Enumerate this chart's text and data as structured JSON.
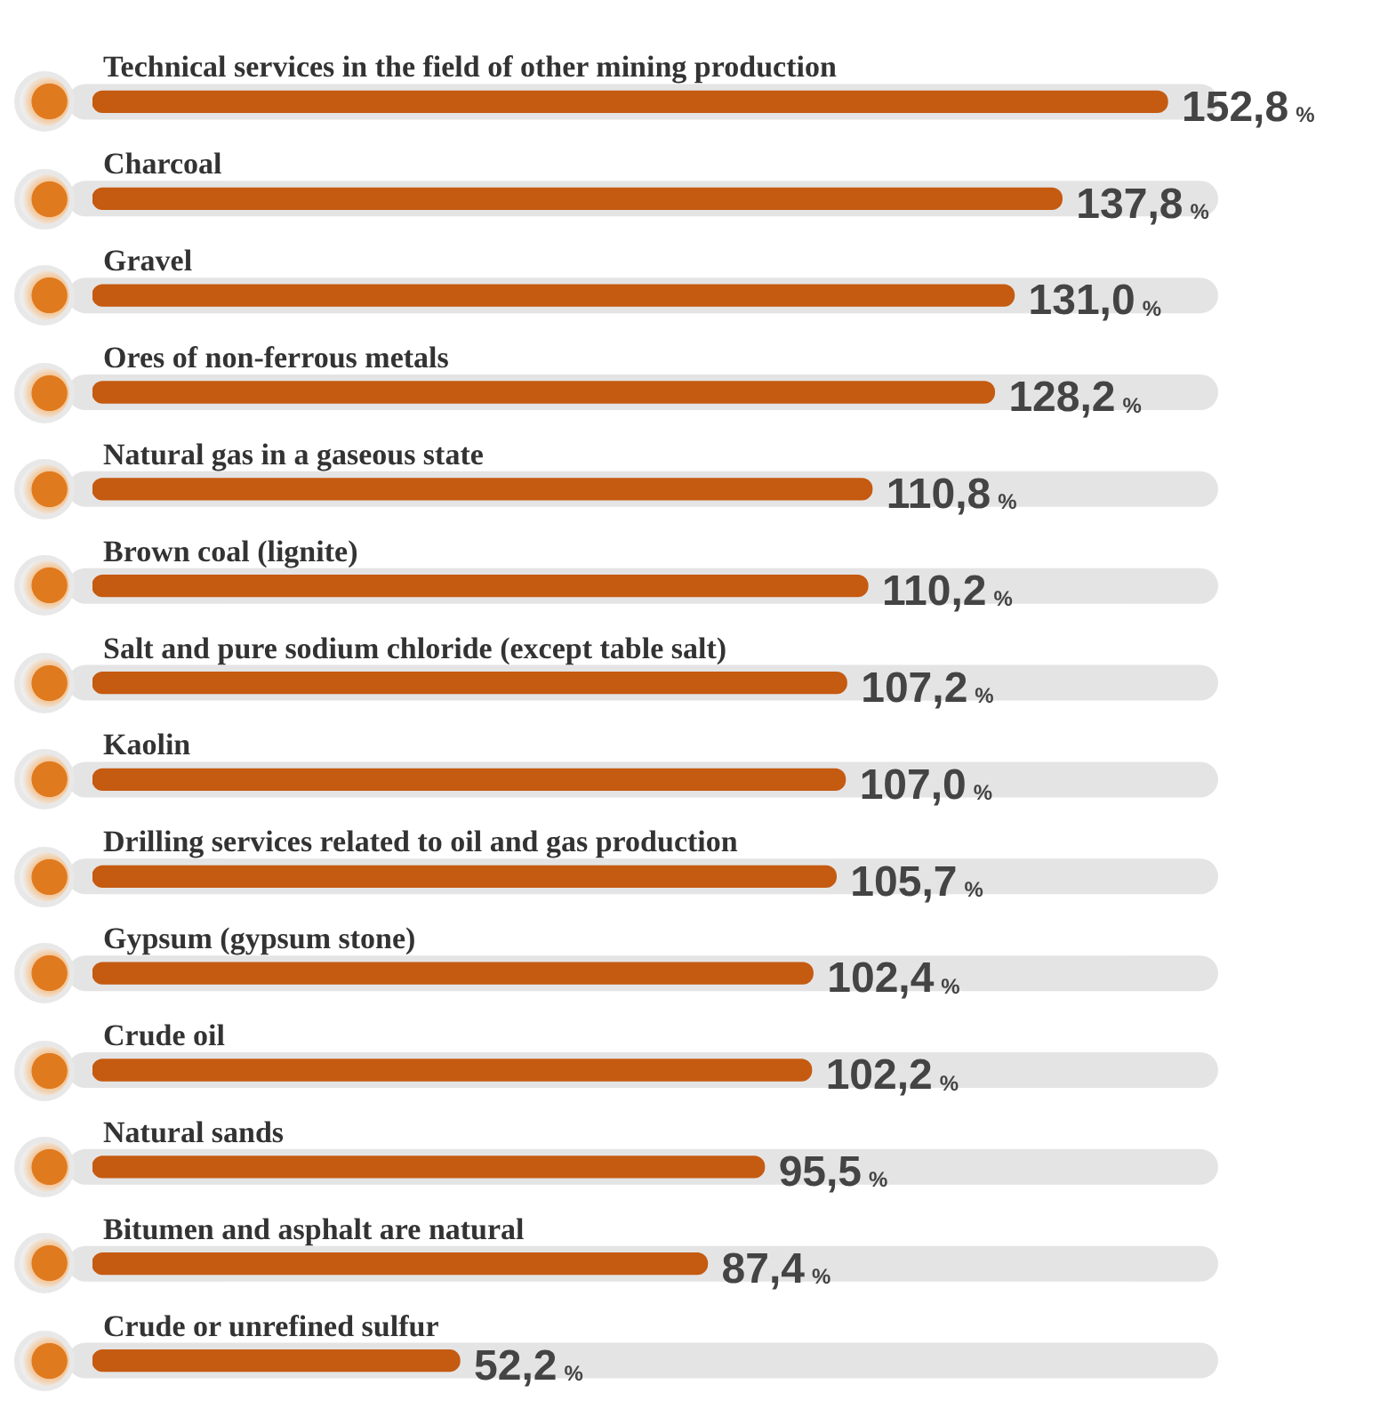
{
  "chart_data": {
    "type": "bar",
    "orientation": "horizontal",
    "relative": false,
    "categories": [
      "Technical services in the field of other mining production",
      "Charcoal",
      "Gravel",
      "Ores of non-ferrous metals",
      "Natural gas in a gaseous state",
      "Brown coal (lignite)",
      "Salt and pure sodium chloride (except table salt)",
      "Kaolin",
      "Drilling services related to oil and gas production",
      "Gypsum (gypsum stone)",
      "Crude oil",
      "Natural sands",
      "Bitumen and asphalt are natural",
      "Crude or unrefined sulfur"
    ],
    "values": [
      152.8,
      137.8,
      131.0,
      128.2,
      110.8,
      110.2,
      107.2,
      107.0,
      105.7,
      102.4,
      102.2,
      95.5,
      87.4,
      52.2
    ],
    "color": "#c55a11",
    "value_labels": [
      "152,8 %",
      "137,8 %",
      "131,0 %",
      "128,2 %",
      "110,8 %",
      "110,2 %",
      "107,2 %",
      "107,0 %",
      "105,7 %",
      "102,4 %",
      "102,2 %",
      "95,5 %",
      "87,4 %",
      "52,2 %"
    ],
    "tick_labels": false,
    "legend": false
  }
}
